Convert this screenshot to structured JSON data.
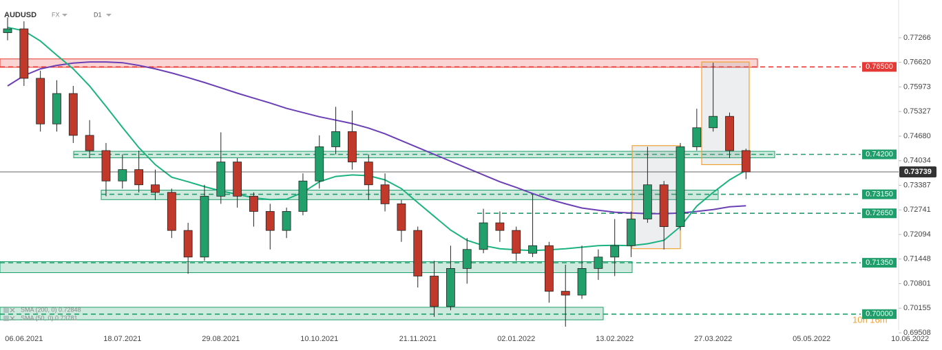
{
  "chart_data": {
    "type": "candlestick",
    "title": "AUDUSD",
    "market": "FX",
    "timeframe": "D1",
    "categories": [
      null,
      "06.06.2021",
      null,
      null,
      null,
      null,
      null,
      "18.07.2021",
      null,
      null,
      null,
      null,
      null,
      "29.08.2021",
      null,
      null,
      null,
      null,
      null,
      "10.10.2021",
      null,
      null,
      null,
      null,
      null,
      "21.11.2021",
      null,
      null,
      null,
      null,
      null,
      "02.01.2022",
      null,
      null,
      null,
      null,
      null,
      "13.02.2022",
      null,
      null,
      null,
      null,
      null,
      "27.03.2022",
      null,
      null,
      null,
      null,
      null,
      "05.05.2022",
      null,
      null,
      null,
      null,
      null,
      "10.06.2022"
    ],
    "open": [
      0.774,
      0.775,
      0.762,
      0.75,
      0.758,
      0.747,
      0.743,
      0.735,
      0.738,
      0.734,
      0.732,
      0.722,
      0.715,
      0.731,
      0.74,
      0.731,
      0.727,
      0.722,
      0.727,
      0.735,
      0.744,
      0.748,
      0.74,
      0.734,
      0.729,
      0.722,
      0.71,
      0.702,
      0.712,
      0.717,
      0.724,
      0.722,
      0.716,
      0.718,
      0.706,
      0.705,
      0.712,
      0.715,
      0.718,
      0.725,
      0.734,
      0.723,
      0.744,
      0.749,
      0.752,
      0.743,
      null,
      null,
      null,
      null,
      null,
      null,
      null,
      null,
      null,
      null
    ],
    "high": [
      0.778,
      0.777,
      0.764,
      0.7615,
      0.76,
      0.751,
      0.745,
      0.742,
      0.743,
      0.738,
      0.733,
      0.724,
      0.734,
      0.7478,
      0.741,
      0.732,
      0.729,
      0.728,
      0.737,
      0.747,
      0.7545,
      0.7535,
      0.742,
      0.737,
      0.73,
      0.723,
      0.714,
      0.718,
      0.72,
      0.7277,
      0.727,
      0.723,
      0.7315,
      0.719,
      0.713,
      0.718,
      0.717,
      0.725,
      0.727,
      0.744,
      0.735,
      0.745,
      0.754,
      0.7661,
      0.753,
      0.7435,
      null,
      null,
      null,
      null,
      null,
      null,
      null,
      null,
      null,
      null
    ],
    "low": [
      0.772,
      0.76,
      0.748,
      0.748,
      0.745,
      0.741,
      0.731,
      0.733,
      0.732,
      0.73,
      0.72,
      0.7106,
      0.714,
      0.729,
      0.728,
      0.723,
      0.717,
      0.72,
      0.726,
      0.733,
      0.742,
      0.738,
      0.73,
      0.727,
      0.719,
      0.707,
      0.6993,
      0.701,
      0.708,
      0.716,
      0.719,
      0.714,
      0.715,
      0.703,
      0.6967,
      0.704,
      0.709,
      0.71,
      0.715,
      0.724,
      0.717,
      0.722,
      0.743,
      0.748,
      0.741,
      0.7355,
      null,
      null,
      null,
      null,
      null,
      null,
      null,
      null,
      null,
      null
    ],
    "close": [
      0.775,
      0.762,
      0.75,
      0.758,
      0.747,
      0.743,
      0.735,
      0.738,
      0.734,
      0.732,
      0.722,
      0.715,
      0.731,
      0.74,
      0.731,
      0.727,
      0.722,
      0.727,
      0.735,
      0.744,
      0.748,
      0.74,
      0.734,
      0.729,
      0.722,
      0.71,
      0.702,
      0.712,
      0.717,
      0.724,
      0.722,
      0.716,
      0.718,
      0.706,
      0.705,
      0.712,
      0.715,
      0.718,
      0.725,
      0.734,
      0.723,
      0.744,
      0.749,
      0.752,
      0.743,
      0.73739,
      null,
      null,
      null,
      null,
      null,
      null,
      null,
      null,
      null,
      null
    ],
    "up_color": "#22a06b",
    "down_color": "#c0392b",
    "series": [
      {
        "name": "SMA (200, 0) 0.72848",
        "color": "#6a3fb5",
        "values": [
          0.76,
          0.7627,
          0.7645,
          0.7654,
          0.766,
          0.7663,
          0.7663,
          0.7661,
          0.7654,
          0.7645,
          0.7634,
          0.7622,
          0.7609,
          0.7595,
          0.7581,
          0.7568,
          0.7555,
          0.7541,
          0.753,
          0.7519,
          0.751,
          0.7501,
          0.7489,
          0.7474,
          0.7456,
          0.7438,
          0.742,
          0.7402,
          0.7384,
          0.7366,
          0.7348,
          0.7333,
          0.7317,
          0.7302,
          0.729,
          0.7279,
          0.7273,
          0.7268,
          0.7266,
          0.7264,
          0.7264,
          0.7266,
          0.727,
          0.7275,
          0.7282,
          0.72848,
          null,
          null,
          null,
          null,
          null,
          null,
          null,
          null,
          null,
          null
        ]
      },
      {
        "name": "SMA (50, 0) 0.73781",
        "color": "#1ab37f",
        "values": [
          0.7754,
          0.7745,
          0.7718,
          0.7681,
          0.7645,
          0.76,
          0.7546,
          0.7491,
          0.7438,
          0.7393,
          0.736,
          0.7348,
          0.7335,
          0.7324,
          0.7315,
          0.7306,
          0.7301,
          0.7302,
          0.732,
          0.7348,
          0.7362,
          0.7366,
          0.7364,
          0.7353,
          0.733,
          0.7293,
          0.7257,
          0.7221,
          0.7194,
          0.718,
          0.7172,
          0.7169,
          0.7167,
          0.7169,
          0.7172,
          0.7176,
          0.718,
          0.7181,
          0.718,
          0.7185,
          0.7194,
          0.723,
          0.7284,
          0.732,
          0.7353,
          0.73781,
          null,
          null,
          null,
          null,
          null,
          null,
          null,
          null,
          null,
          null
        ]
      }
    ],
    "ylim": [
      0.69472,
      0.77753
    ],
    "yticks": [
      0.77266,
      {
        "value": 0.7662,
        "label": "0.76620"
      },
      0.75973,
      0.75327,
      {
        "value": 0.7468,
        "label": "0.74680"
      },
      0.74034,
      0.73387,
      0.72741,
      0.72094,
      0.71448,
      0.70801,
      0.70155,
      0.69508
    ],
    "levels": [
      {
        "value": 0.765,
        "label": "0.76500",
        "color": "#e53935",
        "zone": [
          0.7649,
          0.7671
        ]
      },
      {
        "value": 0.742,
        "label": "0.74200",
        "color": "#1e9e6a",
        "zone": [
          0.7411,
          0.7428
        ]
      },
      {
        "value": 0.7315,
        "label": "0.73150",
        "color": "#1e9e6a",
        "zone": [
          0.7301,
          0.7326
        ]
      },
      {
        "value": 0.7265,
        "label": "0.72650",
        "color": "#1e9e6a"
      },
      {
        "value": 0.7135,
        "label": "0.71350",
        "color": "#1e9e6a",
        "zone": [
          0.7109,
          0.7138
        ]
      },
      {
        "value": 0.7,
        "label": "0.70000",
        "color": "#1e9e6a",
        "zone": [
          0.6985,
          0.7018
        ]
      }
    ],
    "boxes": [
      {
        "high": 0.7443,
        "low": 0.7172,
        "color": "#f0a030"
      },
      {
        "high": 0.7663,
        "low": 0.7393,
        "color": "#f0a030"
      }
    ],
    "last_price": {
      "value": 0.73739,
      "label": "0.73739"
    },
    "countdown": "10h 16m"
  }
}
